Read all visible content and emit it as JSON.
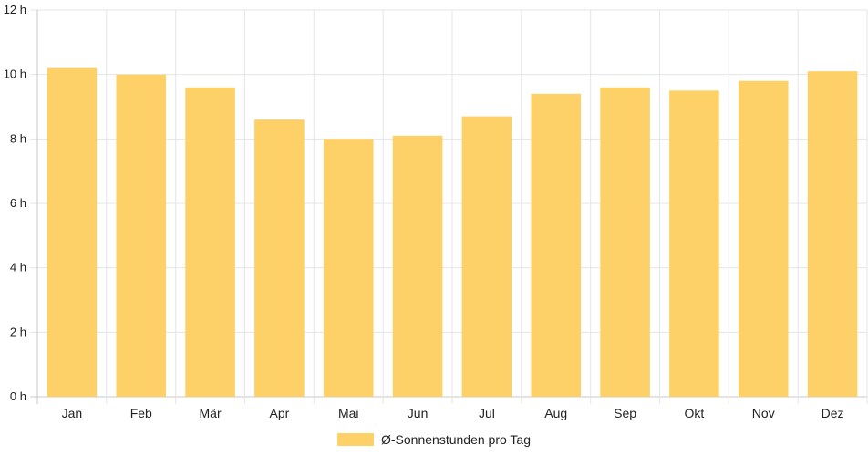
{
  "chart_data": {
    "type": "bar",
    "categories": [
      "Jan",
      "Feb",
      "Mär",
      "Apr",
      "Mai",
      "Jun",
      "Jul",
      "Aug",
      "Sep",
      "Okt",
      "Nov",
      "Dez"
    ],
    "series": [
      {
        "name": "Ø-Sonnenstunden pro Tag",
        "values": [
          10.2,
          10.0,
          9.6,
          8.6,
          8.0,
          8.1,
          8.7,
          9.4,
          9.6,
          9.5,
          9.8,
          10.1
        ]
      }
    ],
    "ylim": [
      0,
      12
    ],
    "yticks": [
      0,
      2,
      4,
      6,
      8,
      10,
      12
    ],
    "ytick_suffix": " h",
    "grid": true,
    "legend_position": "bottom",
    "bar_color": "#fdd167"
  }
}
